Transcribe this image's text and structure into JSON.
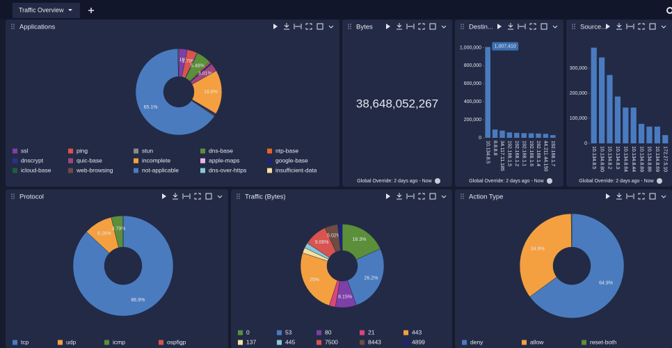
{
  "tab": "Traffic Overview",
  "chart_data": [
    {
      "type": "pie",
      "title": "Applications",
      "categories": [
        "ssl",
        "ping",
        "stun",
        "dns-base",
        "ntp-base",
        "dnscrypt",
        "quic-base",
        "incomplete",
        "apple-maps",
        "google-base",
        "icloud-base",
        "web-browsing",
        "not-applicable",
        "dns-over-https",
        "insufficient-data"
      ],
      "values": [
        3.15,
        3.79,
        0.3,
        5.48,
        0.5,
        0.6,
        3.01,
        16.6,
        0.2,
        0.3,
        0.2,
        0.4,
        65.1,
        0.2,
        0.17
      ],
      "value_labels": [
        "3.15%",
        "3.79%",
        null,
        "5.48%",
        null,
        null,
        "3.01%",
        "16.6%",
        null,
        null,
        null,
        null,
        "65.1%",
        null,
        null
      ],
      "colors": [
        "#7e3fa8",
        "#d9534f",
        "#8a8a8a",
        "#5b8f3a",
        "#e8622a",
        "#2e2e8f",
        "#a0467a",
        "#f4a040",
        "#e8b8e0",
        "#1a237e",
        "#1e5e3e",
        "#6d4c41",
        "#4a7bbf",
        "#88c8d8",
        "#f5e0a0"
      ]
    },
    {
      "type": "kpi",
      "title": "Bytes",
      "value": 38648052267,
      "value_label": "38,648,052,267",
      "footnote": "Global Override: 2 days ago - Now"
    },
    {
      "type": "bar",
      "title": "Destin...",
      "categories": [
        "10.134.8.5",
        "8.8.8.8",
        "34.117.11.185",
        "192.168.1.5",
        "192.168.1.2",
        "192.168.1.1",
        "192.168.1.6",
        "192.168.1.4",
        "44.211.44.150",
        "192.168.1.7"
      ],
      "values": [
        1007410,
        92000,
        80000,
        60000,
        55000,
        52000,
        50000,
        48000,
        44000,
        30000
      ],
      "value_labels": [
        "1,007,410",
        null,
        null,
        null,
        null,
        null,
        null,
        null,
        null,
        null
      ],
      "color": "#4a7bbf",
      "ylim": [
        0,
        1050000
      ],
      "yticks": [
        0,
        {
          "value": 200000,
          "label": "200,000"
        },
        {
          "value": 400000,
          "label": "400,000"
        },
        {
          "value": 600000,
          "label": "600,000"
        },
        {
          "value": 800000,
          "label": "800,000"
        },
        {
          "value": 1000000,
          "label": "1,000,000"
        }
      ],
      "footnote": "Global Override: 2 days ago - Now"
    },
    {
      "type": "bar",
      "title": "Source...",
      "categories": [
        "10.134.8.5",
        "10.134.8.80",
        "10.134.8.2",
        "10.134.8.3",
        "10.134.8.64",
        "10.134.8.44",
        "10.134.8.89",
        "10.134.8.86",
        "10.134.8.69",
        "172.27.5.10"
      ],
      "values": [
        382000,
        343000,
        273000,
        187000,
        143000,
        143000,
        78000,
        67000,
        67000,
        33000
      ],
      "color": "#4a7bbf",
      "ylim": [
        0,
        400000
      ],
      "yticks": [
        0,
        {
          "value": 100000,
          "label": "100,000"
        },
        {
          "value": 200000,
          "label": "200,000"
        },
        {
          "value": 300000,
          "label": "300,000"
        }
      ],
      "footnote": "Global Override: 2 days ago - Now"
    },
    {
      "type": "pie",
      "title": "Protocol",
      "categories": [
        "tcp",
        "udp",
        "icmp",
        "ospfigp"
      ],
      "values": [
        86.9,
        9.26,
        3.79,
        0.05
      ],
      "value_labels": [
        "86.9%",
        "9.26%",
        "3.79%",
        null
      ],
      "colors": [
        "#4a7bbf",
        "#f4a040",
        "#5b8f3a",
        "#d9534f"
      ]
    },
    {
      "type": "pie",
      "title": "Traffic (Bytes)",
      "categories": [
        "0",
        "53",
        "80",
        "21",
        "443",
        "137",
        "445",
        "7500",
        "8443",
        "4899"
      ],
      "values": [
        18.3,
        26.2,
        8.15,
        2.4,
        25,
        2.1,
        2.0,
        9.06,
        5.02,
        1.77
      ],
      "value_labels": [
        "18.3%",
        "26.2%",
        "8.15%",
        null,
        "25%",
        null,
        null,
        "9.06%",
        "5.02%",
        null
      ],
      "colors": [
        "#5b8f3a",
        "#4a7bbf",
        "#7e3fa8",
        "#d9477a",
        "#f4a040",
        "#f5e0a0",
        "#88c8d8",
        "#d9534f",
        "#6d4c41",
        "#1a237e"
      ]
    },
    {
      "type": "pie",
      "title": "Action Type",
      "categories": [
        "deny",
        "allow",
        "reset-both"
      ],
      "values": [
        64.9,
        34.9,
        0.2
      ],
      "value_labels": [
        "64.9%",
        "34.9%",
        null
      ],
      "colors": [
        "#4a7bbf",
        "#f4a040",
        "#5b8f3a"
      ]
    }
  ]
}
